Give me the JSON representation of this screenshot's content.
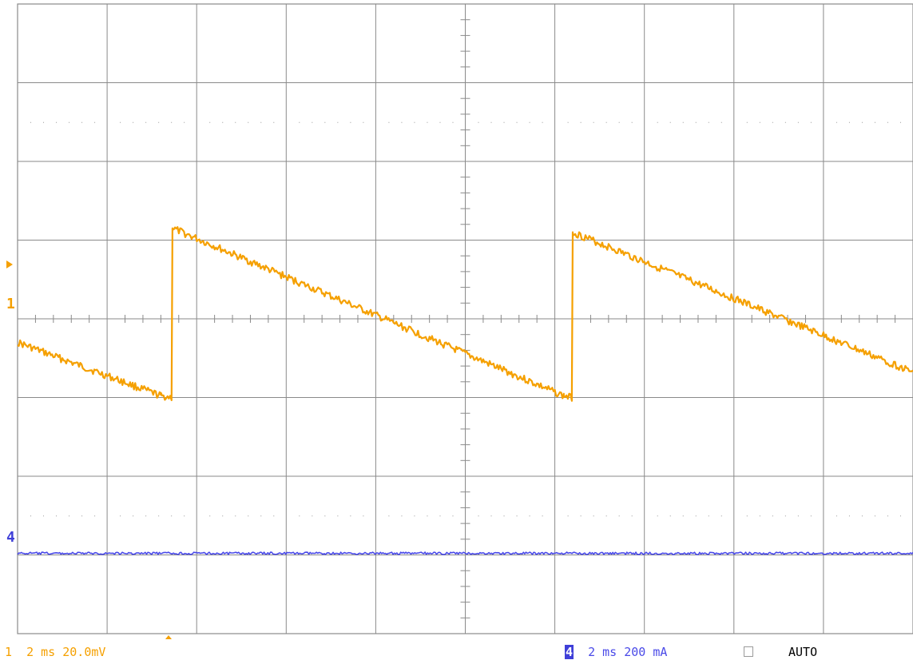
{
  "chart_data": {
    "type": "line",
    "grid": true,
    "x_divisions": 10,
    "y_divisions": 8,
    "time_per_div": "2 ms",
    "x_unit": "div",
    "xlim": [
      0,
      10
    ],
    "ylim": [
      -4,
      4
    ],
    "series": [
      {
        "channel": "1",
        "color": "#f5a000",
        "scale": "20.0mV",
        "x": [
          0.0,
          1.6,
          1.72,
          1.73,
          6.1,
          6.19,
          6.2,
          10.0
        ],
        "y": [
          -0.3,
          -0.98,
          -1.0,
          1.15,
          -0.98,
          -1.0,
          1.1,
          -0.68
        ]
      },
      {
        "channel": "4",
        "color": "#4a4ae8",
        "scale": "200 mA",
        "x": [
          0,
          10
        ],
        "y": [
          -2.98,
          -2.98
        ]
      }
    ]
  },
  "markers": {
    "ch1_ground": "1",
    "ch4_ground": "4"
  },
  "status_bar": {
    "ch1_label": "1",
    "ch1_time": "2 ms",
    "ch1_scale": "20.0mV",
    "ch4_label": "4",
    "ch4_time": "2 ms",
    "ch4_scale": "200 mA",
    "mode": "AUTO"
  }
}
